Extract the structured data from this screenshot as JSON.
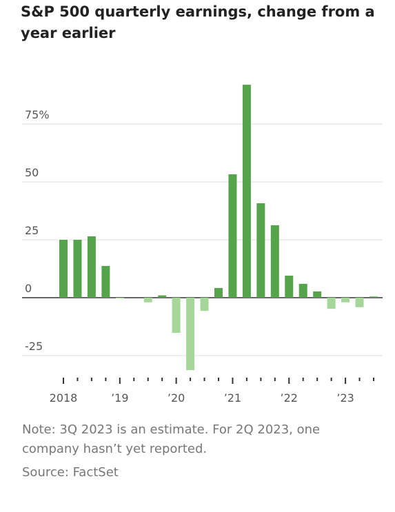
{
  "chart_data": {
    "type": "bar",
    "title": "S&P 500 quarterly earnings, change from a year earlier",
    "note": "Note: 3Q 2023 is an estimate. For 2Q 2023, one company hasn’t yet reported.",
    "source": "Source: FactSet",
    "categories": [
      "2018",
      null,
      null,
      null,
      "’19",
      null,
      null,
      null,
      "’20",
      null,
      null,
      null,
      "’21",
      null,
      null,
      null,
      "’22",
      null,
      null,
      null,
      "’23",
      null,
      null
    ],
    "values": [
      25,
      25,
      26.5,
      13.7,
      -0.3,
      0,
      -2,
      1,
      -15.2,
      -31.3,
      -5.7,
      4.2,
      53.3,
      92,
      40.8,
      31.3,
      9.5,
      6,
      2.7,
      -4.8,
      -2,
      -4.1,
      0.5
    ],
    "positive_color": "#55a34a",
    "negative_color": "#a6d69a",
    "ylim": [
      -35,
      95
    ],
    "yticks": [
      {
        "value": 75,
        "label": "75%"
      },
      50,
      25,
      0,
      -25
    ],
    "grid": true
  }
}
